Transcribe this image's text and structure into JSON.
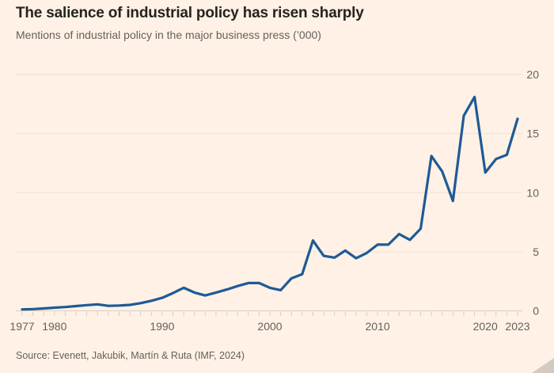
{
  "colors": {
    "background": "#fff1e5",
    "title_text": "#26231f",
    "muted_text": "#66605b",
    "line": "#1e5a96",
    "gridline": "#efe1d2",
    "axis_line": "#d8cfc5",
    "tick": "#d8cfc5",
    "resize_handle": "#cbc3ba"
  },
  "chart_data": {
    "type": "line",
    "title": "The salience of industrial policy has risen sharply",
    "subtitle": "Mentions of industrial policy in the major business press (’000)",
    "source": "Source: Evenett, Jakubik, Martín & Ruta (IMF, 2024)",
    "series_name": "Mentions of industrial policy (’000)",
    "xlabel": "",
    "ylabel": "",
    "xlim": [
      1977,
      2023
    ],
    "ylim": [
      0,
      20
    ],
    "y_ticks": [
      0,
      5,
      10,
      15,
      20
    ],
    "x_tick_labels": [
      "1977",
      "1980",
      "1990",
      "2000",
      "2010",
      "2020",
      "2023"
    ],
    "minor_tick_every_year": true,
    "grid": "horizontal",
    "y_axis_side": "right",
    "legend": "none",
    "x": [
      1977,
      1978,
      1979,
      1980,
      1981,
      1982,
      1983,
      1984,
      1985,
      1986,
      1987,
      1988,
      1989,
      1990,
      1991,
      1992,
      1993,
      1994,
      1995,
      1996,
      1997,
      1998,
      1999,
      2000,
      2001,
      2002,
      2003,
      2004,
      2005,
      2006,
      2007,
      2008,
      2009,
      2010,
      2011,
      2012,
      2013,
      2014,
      2015,
      2016,
      2017,
      2018,
      2019,
      2020,
      2021,
      2022,
      2023
    ],
    "values": [
      0.12,
      0.15,
      0.2,
      0.27,
      0.32,
      0.4,
      0.48,
      0.55,
      0.42,
      0.45,
      0.5,
      0.65,
      0.85,
      1.1,
      1.5,
      1.95,
      1.55,
      1.3,
      1.55,
      1.8,
      2.1,
      2.35,
      2.35,
      1.95,
      1.75,
      2.75,
      3.1,
      5.95,
      4.65,
      4.5,
      5.1,
      4.45,
      4.9,
      5.6,
      5.6,
      6.5,
      6.0,
      6.95,
      13.1,
      11.8,
      9.3,
      16.5,
      18.1,
      11.7,
      12.85,
      13.2,
      16.25
    ]
  }
}
